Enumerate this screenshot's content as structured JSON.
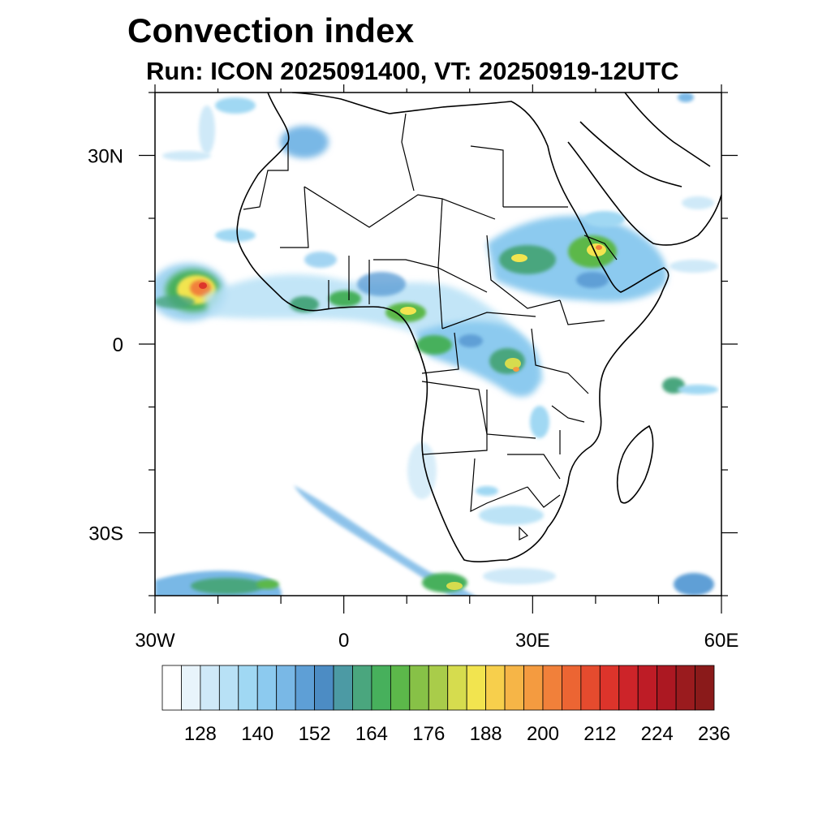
{
  "title": "Convection index",
  "subtitle": "Run: ICON 2025091400,  VT: 20250919-12UTC",
  "map": {
    "region": "Africa",
    "lon_range": [
      -30,
      60
    ],
    "lat_range": [
      -40,
      40
    ],
    "lon_ticks": [
      {
        "lon": -30,
        "label": "30W"
      },
      {
        "lon": 0,
        "label": "0"
      },
      {
        "lon": 30,
        "label": "30E"
      },
      {
        "lon": 60,
        "label": "60E"
      }
    ],
    "lat_ticks": [
      {
        "lat": 30,
        "label": "30N"
      },
      {
        "lat": 0,
        "label": "0"
      },
      {
        "lat": -30,
        "label": "30S"
      }
    ]
  },
  "colorbar": {
    "labels": [
      "128",
      "140",
      "152",
      "164",
      "176",
      "188",
      "200",
      "212",
      "224",
      "236"
    ],
    "colors": [
      "#ffffff",
      "#e8f4fb",
      "#cfe9f8",
      "#b8e1f6",
      "#a0d8f3",
      "#8ccaef",
      "#79b8e6",
      "#5e9fd6",
      "#4c8cc4",
      "#4c9aa4",
      "#4aa67e",
      "#47b05c",
      "#5cb84a",
      "#87c147",
      "#a9cc4a",
      "#d6dc4e",
      "#f2e44f",
      "#f7cf4c",
      "#f6b547",
      "#f49b40",
      "#f1803a",
      "#ec6533",
      "#e54b2e",
      "#dd342b",
      "#cd2429",
      "#be1c26",
      "#ac1822",
      "#9a1b1e",
      "#8a1a1a"
    ]
  },
  "convection_fields": [
    {
      "name": "atlantic-cell",
      "level": "high"
    },
    {
      "name": "west-africa-band",
      "level": "moderate"
    },
    {
      "name": "ethiopia-sudan-band",
      "level": "moderate"
    },
    {
      "name": "central-africa-band",
      "level": "moderate"
    },
    {
      "name": "southern-streak",
      "level": "low"
    },
    {
      "name": "southwest-corner",
      "level": "moderate"
    }
  ]
}
